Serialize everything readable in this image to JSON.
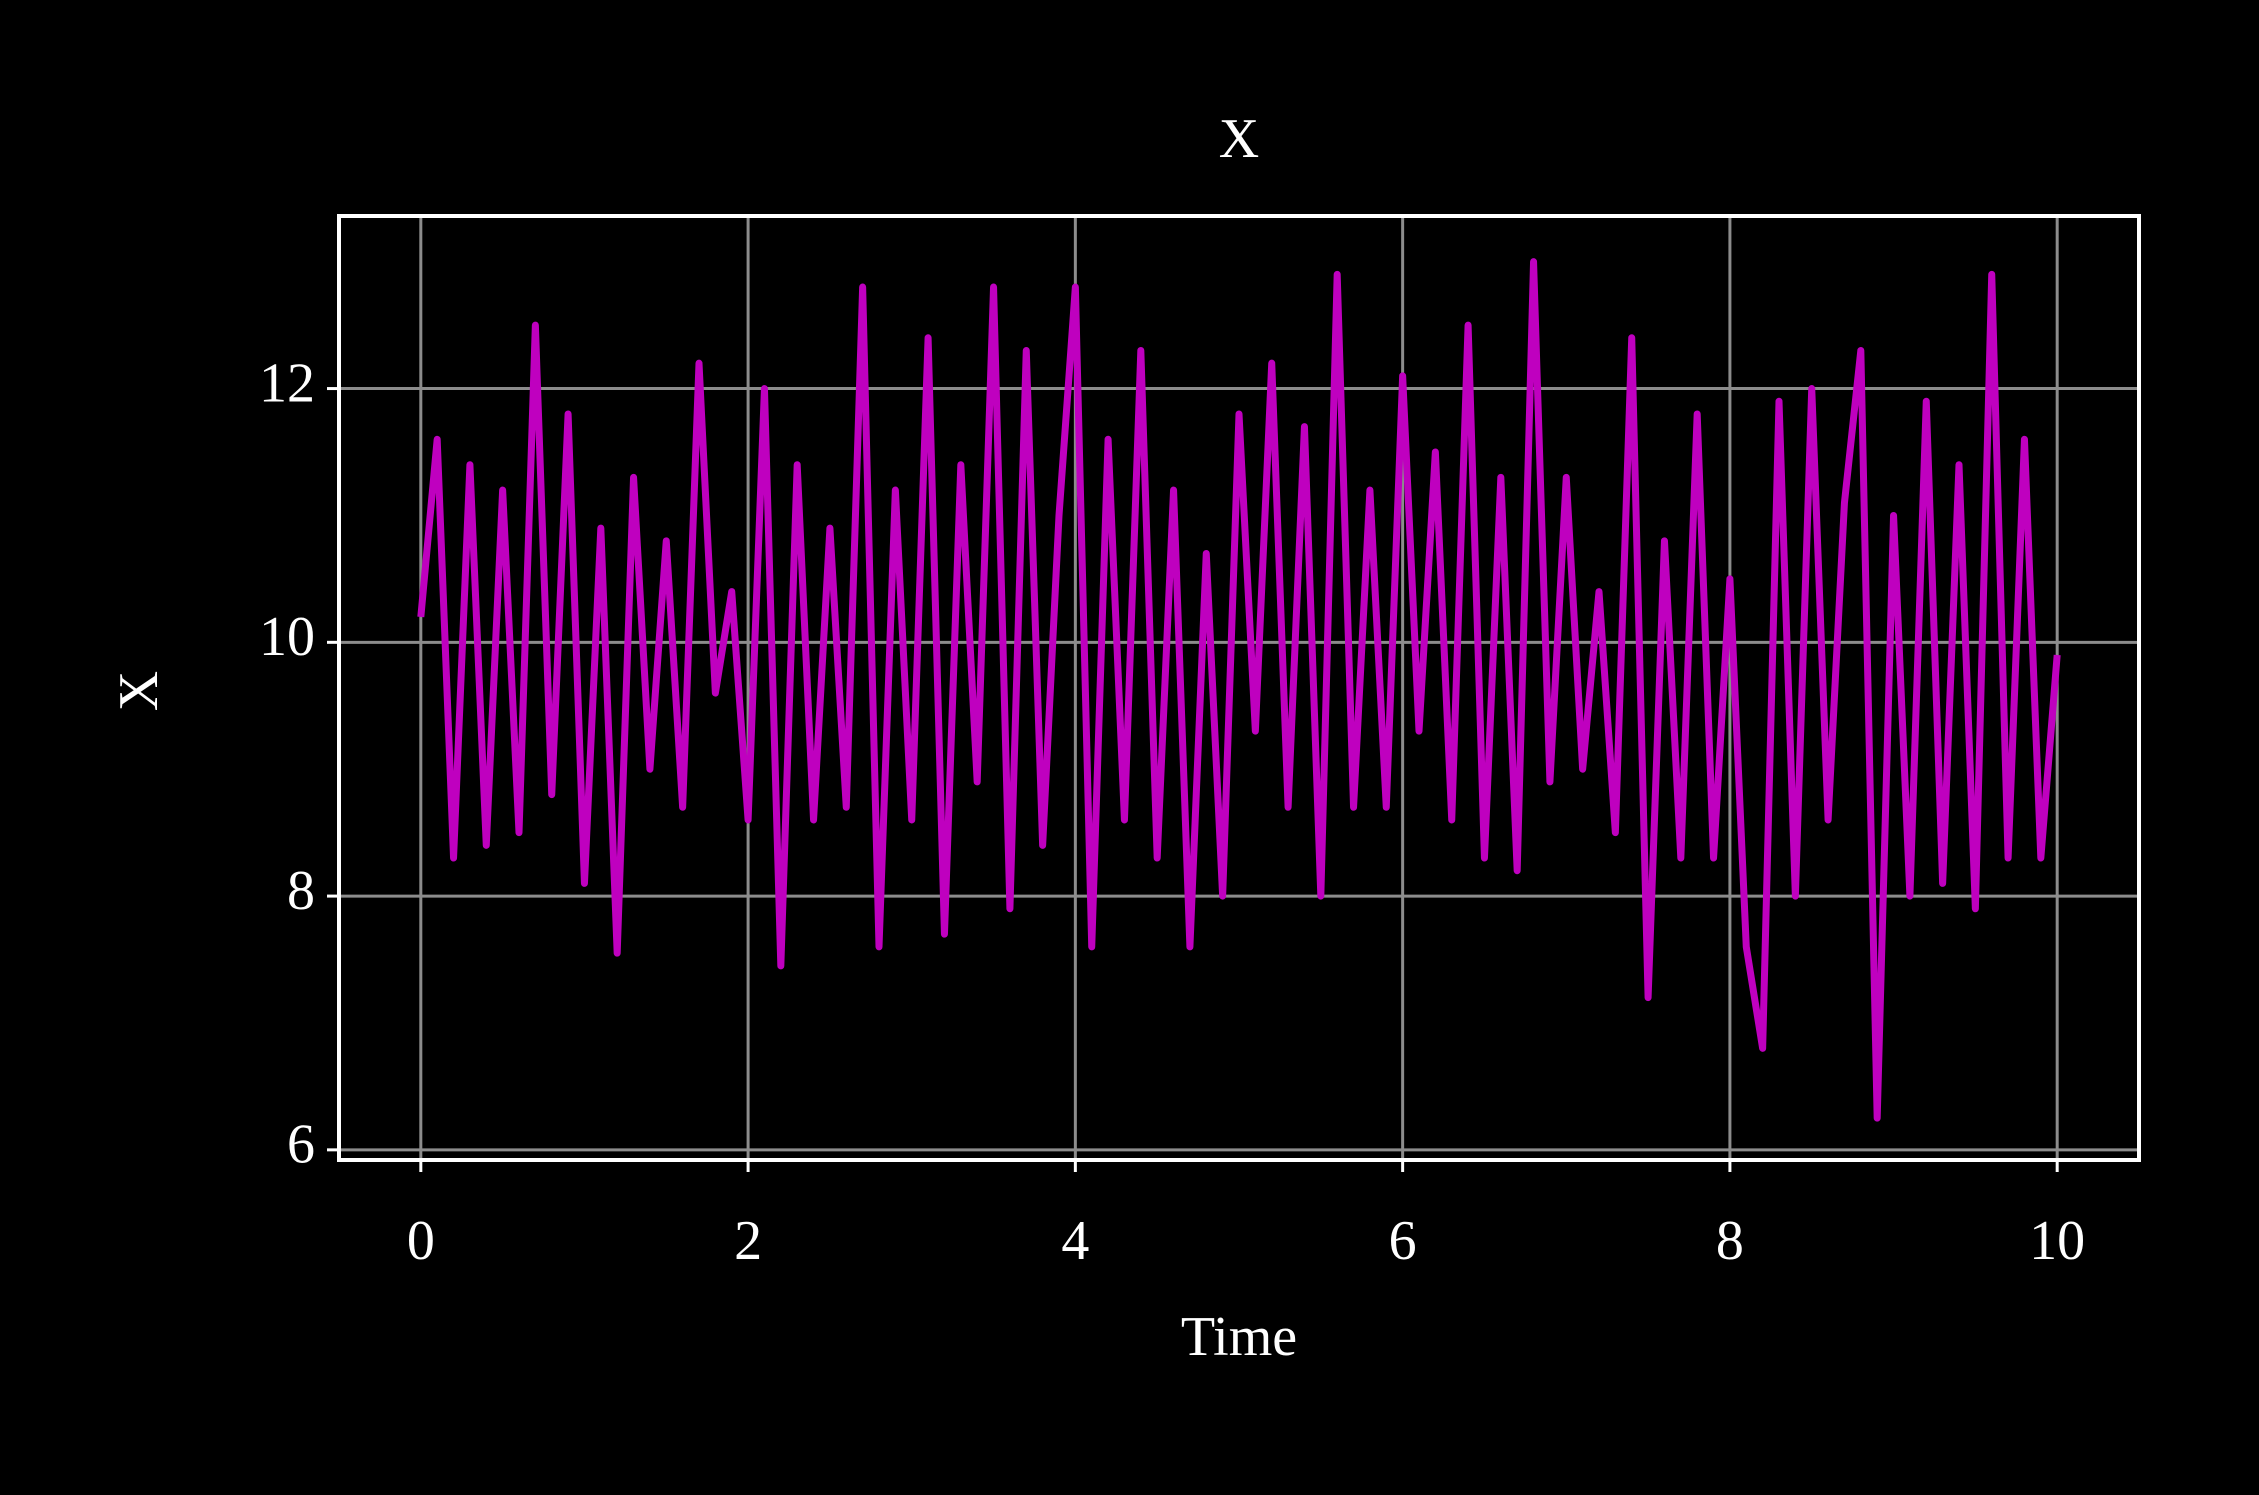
{
  "chart_data": {
    "type": "line",
    "title": "X",
    "xlabel": "Time",
    "ylabel": "X",
    "x": [
      0,
      0.1,
      0.2,
      0.3,
      0.4,
      0.5,
      0.6,
      0.7,
      0.8,
      0.9,
      1,
      1.1,
      1.2,
      1.3,
      1.4,
      1.5,
      1.6,
      1.7,
      1.8,
      1.9,
      2,
      2.1,
      2.2,
      2.3,
      2.4,
      2.5,
      2.6,
      2.7,
      2.8,
      2.9,
      3,
      3.1,
      3.2,
      3.3,
      3.4,
      3.5,
      3.6,
      3.7,
      3.8,
      3.9,
      4,
      4.1,
      4.2,
      4.3,
      4.4,
      4.5,
      4.6,
      4.7,
      4.8,
      4.9,
      5,
      5.1,
      5.2,
      5.3,
      5.4,
      5.5,
      5.6,
      5.7,
      5.8,
      5.9,
      6,
      6.1,
      6.2,
      6.3,
      6.4,
      6.5,
      6.6,
      6.7,
      6.8,
      6.9,
      7,
      7.1,
      7.2,
      7.3,
      7.4,
      7.5,
      7.6,
      7.7,
      7.8,
      7.9,
      8,
      8.1,
      8.2,
      8.3,
      8.4,
      8.5,
      8.6,
      8.7,
      8.8,
      8.9,
      9,
      9.1,
      9.2,
      9.3,
      9.4,
      9.5,
      9.6,
      9.7,
      9.8,
      9.9,
      10
    ],
    "series": [
      {
        "name": "X",
        "color": "#bf00bf",
        "values": [
          10.2,
          11.6,
          8.3,
          11.4,
          8.4,
          11.2,
          8.5,
          12.5,
          8.8,
          11.8,
          8.1,
          10.9,
          7.55,
          11.3,
          9.0,
          10.8,
          8.7,
          12.2,
          9.6,
          10.4,
          8.6,
          12.0,
          7.45,
          11.4,
          8.6,
          10.9,
          8.7,
          12.8,
          7.6,
          11.2,
          8.6,
          12.4,
          7.7,
          11.4,
          8.9,
          12.8,
          7.9,
          12.3,
          8.4,
          11.0,
          12.8,
          7.6,
          11.6,
          8.6,
          12.3,
          8.3,
          11.2,
          7.6,
          10.7,
          8.0,
          11.8,
          9.3,
          12.2,
          8.7,
          11.7,
          8.0,
          12.9,
          8.7,
          11.2,
          8.7,
          12.1,
          9.3,
          11.5,
          8.6,
          12.5,
          8.3,
          11.3,
          8.2,
          13.0,
          8.9,
          11.3,
          9.0,
          10.4,
          8.5,
          12.4,
          7.2,
          10.8,
          8.3,
          11.8,
          8.3,
          10.5,
          7.6,
          6.8,
          11.9,
          8.0,
          12.0,
          8.6,
          11.1,
          12.3,
          6.25,
          11.0,
          8.0,
          11.9,
          8.1,
          11.4,
          7.9,
          12.9,
          8.3,
          11.6,
          8.3,
          9.9
        ]
      }
    ],
    "xlim": [
      -0.5,
      10.5
    ],
    "ylim": [
      5.92,
      13.36
    ],
    "xticks": [
      0,
      2,
      4,
      6,
      8,
      10
    ],
    "yticks": [
      6,
      8,
      10,
      12
    ],
    "grid": true
  }
}
